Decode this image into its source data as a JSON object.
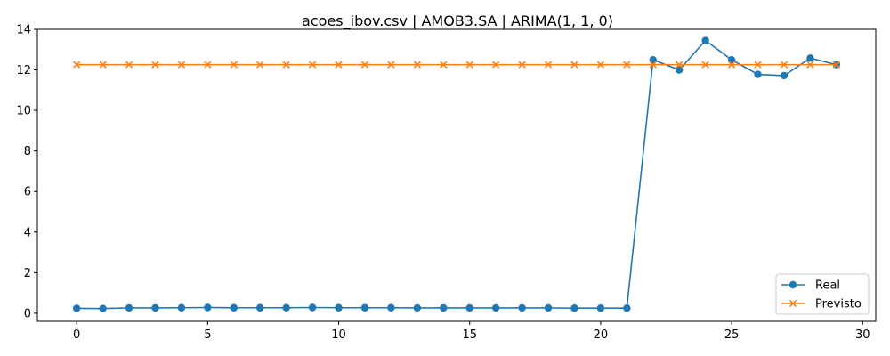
{
  "chart_data": {
    "type": "line",
    "title": "acoes_ibov.csv | AMOB3.SA | ARIMA(1, 1, 0)",
    "xlabel": "",
    "ylabel": "",
    "xlim": [
      -1.5,
      30.5
    ],
    "ylim": [
      -0.4,
      14.0
    ],
    "xticks": [
      0,
      5,
      10,
      15,
      20,
      25,
      30
    ],
    "yticks": [
      0,
      2,
      4,
      6,
      8,
      10,
      12,
      14
    ],
    "grid": false,
    "legend_position": "lower-right",
    "x": [
      0,
      1,
      2,
      3,
      4,
      5,
      6,
      7,
      8,
      9,
      10,
      11,
      12,
      13,
      14,
      15,
      16,
      17,
      18,
      19,
      20,
      21,
      22,
      23,
      24,
      25,
      26,
      27,
      28,
      29
    ],
    "series": [
      {
        "name": "Real",
        "color": "#1f77b4",
        "marker": "circle",
        "values": [
          0.24,
          0.23,
          0.26,
          0.26,
          0.27,
          0.28,
          0.27,
          0.27,
          0.27,
          0.28,
          0.27,
          0.27,
          0.27,
          0.26,
          0.26,
          0.26,
          0.26,
          0.26,
          0.26,
          0.25,
          0.25,
          0.25,
          12.5,
          12.0,
          13.45,
          12.5,
          11.78,
          11.72,
          12.58,
          12.26
        ]
      },
      {
        "name": "Previsto",
        "color": "#ff7f0e",
        "marker": "x",
        "values": [
          12.26,
          12.26,
          12.26,
          12.26,
          12.26,
          12.26,
          12.26,
          12.26,
          12.26,
          12.26,
          12.26,
          12.26,
          12.26,
          12.26,
          12.26,
          12.26,
          12.26,
          12.26,
          12.26,
          12.26,
          12.26,
          12.26,
          12.26,
          12.26,
          12.26,
          12.26,
          12.26,
          12.26,
          12.26,
          12.26
        ]
      }
    ]
  }
}
